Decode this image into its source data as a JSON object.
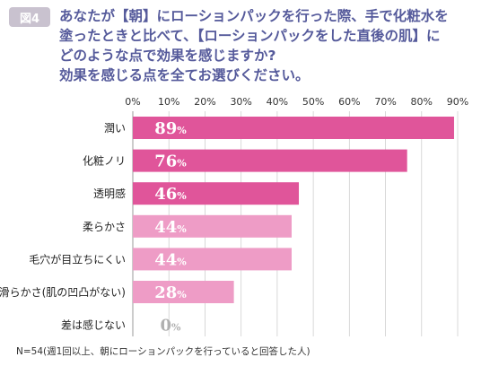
{
  "header": {
    "badge": "図4",
    "question_lines": [
      "あなたが【朝】にローションパックを行った際、手で化粧水を",
      "塗ったときと比べて、【ローションパックをした直後の肌】に",
      "どのような点で効果を感じますか?",
      "効果を感じる点を全てお選びください。"
    ]
  },
  "chart_data": {
    "type": "bar",
    "orientation": "horizontal",
    "categories": [
      "潤い",
      "化粧ノリ",
      "透明感",
      "柔らかさ",
      "毛穴が目立ちにくい",
      "滑らかさ(肌の凹凸がない)",
      "差は感じない"
    ],
    "values": [
      89,
      76,
      46,
      44,
      44,
      28,
      0
    ],
    "value_labels": [
      "89",
      "76",
      "46",
      "44",
      "44",
      "28",
      "0"
    ],
    "value_unit": "%",
    "xlim": [
      0,
      90
    ],
    "xticks": [
      "0%",
      "10%",
      "20%",
      "30%",
      "40%",
      "50%",
      "60%",
      "70%",
      "80%",
      "90%"
    ],
    "grid": true,
    "bar_colors": [
      "#e0559a",
      "#e0559a",
      "#e0559a",
      "#ee9cc6",
      "#ee9cc6",
      "#ee9cc6",
      "#ee9cc6"
    ],
    "label_colors": [
      "#ffffff",
      "#ffffff",
      "#ffffff",
      "#ffffff",
      "#ffffff",
      "#ffffff",
      "#b0b0b0"
    ]
  },
  "footnote": "N=54(週1回以上、朝にローションパックを行っていると回答した人)"
}
